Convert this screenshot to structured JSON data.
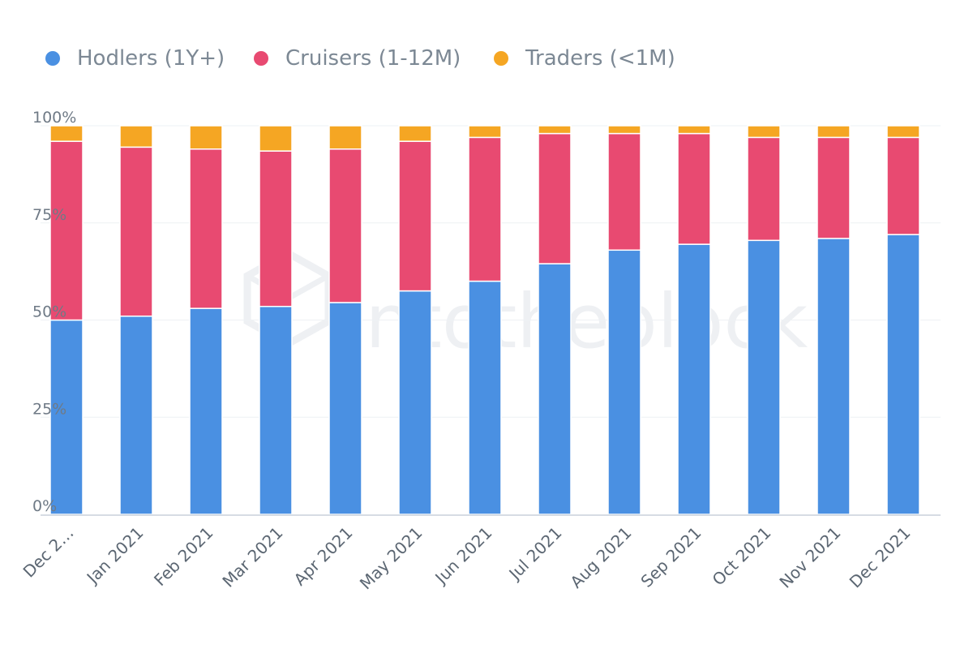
{
  "chart_data": {
    "type": "bar",
    "stacked": "percent",
    "categories": [
      "Dec 2…",
      "Jan 2021",
      "Feb 2021",
      "Mar 2021",
      "Apr 2021",
      "May 2021",
      "Jun 2021",
      "Jul 2021",
      "Aug 2021",
      "Sep 2021",
      "Oct 2021",
      "Nov 2021",
      "Dec 2021"
    ],
    "series": [
      {
        "name": "Hodlers (1Y+)",
        "color": "#4a90e2",
        "values": [
          50,
          51,
          53,
          53.5,
          54.5,
          57.5,
          60,
          64.5,
          68,
          69.5,
          70.5,
          71,
          72
        ]
      },
      {
        "name": "Cruisers (1-12M)",
        "color": "#e84a71",
        "values": [
          46,
          43.5,
          41,
          40,
          39.5,
          38.5,
          37,
          33.5,
          30,
          28.5,
          26.5,
          26,
          25
        ]
      },
      {
        "name": "Traders (<1M)",
        "color": "#f5a623",
        "values": [
          4,
          5.5,
          6,
          6.5,
          6,
          4,
          3,
          2,
          2,
          2,
          3,
          3,
          3
        ]
      }
    ],
    "yticks": [
      "0%",
      "25%",
      "50%",
      "75%",
      "100%"
    ],
    "ylim": [
      0,
      100
    ],
    "grid": true,
    "legend": "top-left",
    "watermark": "intotheblock"
  }
}
